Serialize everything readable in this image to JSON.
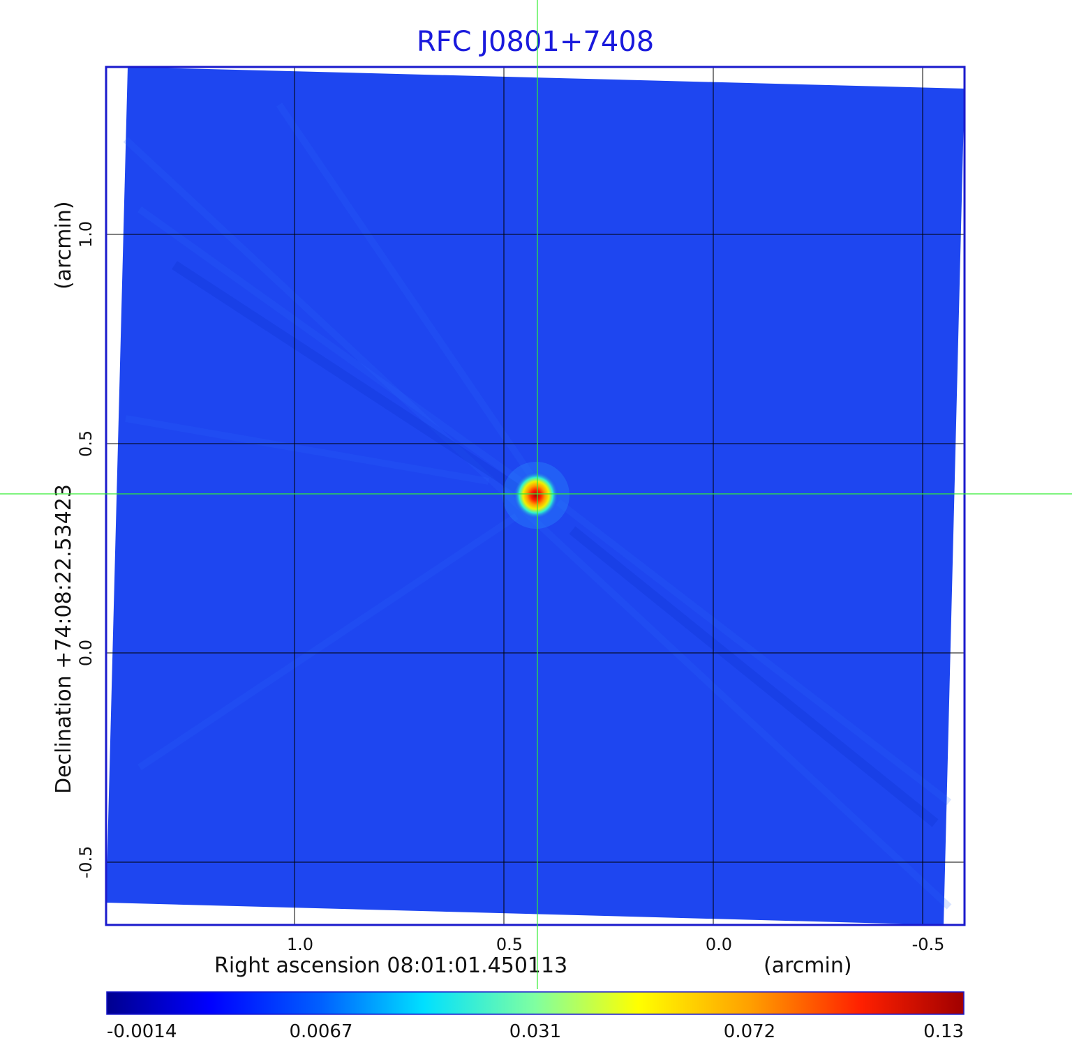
{
  "chart_data": {
    "type": "heatmap",
    "title": "RFC J0801+7408",
    "xlabel": "Right ascension  08:01:01.450113",
    "xunit": "(arcmin)",
    "ylabel": "Declination  +74:08:22.53423",
    "yunit": "(arcmin)",
    "x_ticks": [
      1.0,
      0.5,
      0.0,
      -0.5
    ],
    "x_tick_labels": [
      "1.0",
      "0.5",
      "0.0",
      "-0.5"
    ],
    "y_ticks": [
      1.0,
      0.5,
      0.0,
      -0.5
    ],
    "y_tick_labels": [
      "1.0",
      "0.5",
      "0.0",
      "-0.5"
    ],
    "xlim": [
      1.45,
      -0.6
    ],
    "ylim": [
      -0.65,
      1.4
    ],
    "grid": true,
    "crosshair": {
      "x": 0.42,
      "y": 0.38
    },
    "source_peak": {
      "x": 0.42,
      "y": 0.38,
      "value": 0.13
    },
    "colorbar": {
      "tick_labels": [
        "-0.0014",
        "0.0067",
        "0.031",
        "0.072",
        "0.13"
      ],
      "colormap": "jet",
      "min": -0.0014,
      "max": 0.13
    },
    "colors": {
      "background_map": "#1e46f0",
      "frame": "#1a1acc",
      "title": "#1a1adc",
      "crosshair": "#33ee33",
      "grid": "#000000"
    }
  }
}
